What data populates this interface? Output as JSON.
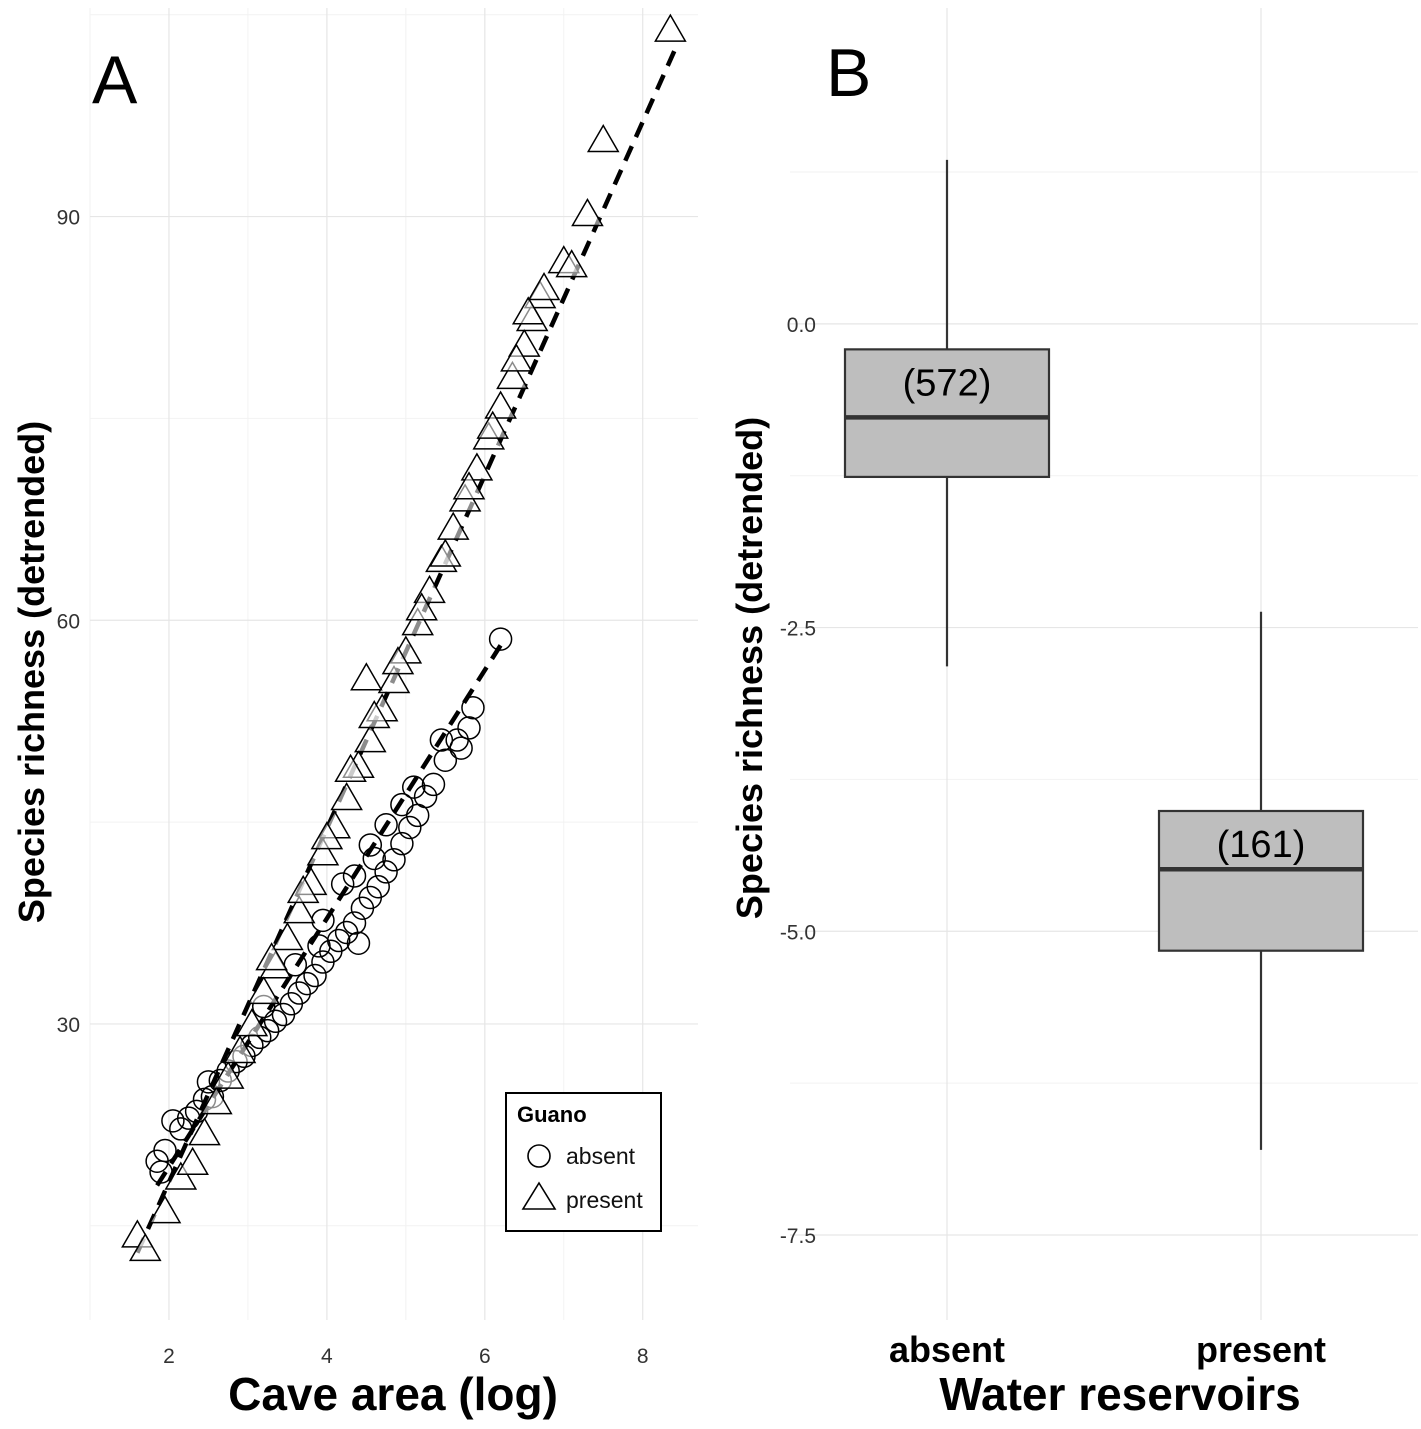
{
  "chart_data": [
    {
      "panel_label": "A",
      "type": "scatter",
      "xlabel": "Cave area (log)",
      "ylabel": "Species richness (detrended)",
      "xlim": [
        1.0,
        8.7
      ],
      "ylim": [
        8.0,
        105.5
      ],
      "xticks": [
        2,
        4,
        6,
        8
      ],
      "yticks": [
        30,
        60,
        90
      ],
      "grid": true,
      "legend": {
        "title": "Guano",
        "placement": "bottom-right",
        "entries": [
          "absent",
          "present"
        ]
      },
      "series": [
        {
          "name": "absent",
          "marker": "circle",
          "fit_line": {
            "style": "dashed",
            "x": [
              1.85,
              6.25
            ],
            "y": [
              18.0,
              58.6
            ]
          },
          "points": [
            [
              1.85,
              19.8
            ],
            [
              1.9,
              19.0
            ],
            [
              1.95,
              20.6
            ],
            [
              2.05,
              22.8
            ],
            [
              2.15,
              22.2
            ],
            [
              2.25,
              23.0
            ],
            [
              2.35,
              23.5
            ],
            [
              2.45,
              24.4
            ],
            [
              2.55,
              24.6
            ],
            [
              2.65,
              25.8
            ],
            [
              2.75,
              26.5
            ],
            [
              2.85,
              27.2
            ],
            [
              2.95,
              27.6
            ],
            [
              3.05,
              28.4
            ],
            [
              3.15,
              29.0
            ],
            [
              3.25,
              29.5
            ],
            [
              3.35,
              30.2
            ],
            [
              3.45,
              30.7
            ],
            [
              3.55,
              31.5
            ],
            [
              3.65,
              32.3
            ],
            [
              3.75,
              33.0
            ],
            [
              3.85,
              33.6
            ],
            [
              3.95,
              34.6
            ],
            [
              4.05,
              35.4
            ],
            [
              4.15,
              36.2
            ],
            [
              4.25,
              36.8
            ],
            [
              4.35,
              37.5
            ],
            [
              4.45,
              38.6
            ],
            [
              4.55,
              39.4
            ],
            [
              4.65,
              40.2
            ],
            [
              4.75,
              41.3
            ],
            [
              4.85,
              42.2
            ],
            [
              4.95,
              43.4
            ],
            [
              5.05,
              44.6
            ],
            [
              5.15,
              45.5
            ],
            [
              5.25,
              46.9
            ],
            [
              5.35,
              47.8
            ],
            [
              5.5,
              49.6
            ],
            [
              5.65,
              51.1
            ],
            [
              5.8,
              52.0
            ],
            [
              5.85,
              53.5
            ],
            [
              6.2,
              58.6
            ],
            [
              4.55,
              43.3
            ],
            [
              4.75,
              44.8
            ],
            [
              4.95,
              46.3
            ],
            [
              3.2,
              31.3
            ],
            [
              3.6,
              34.4
            ],
            [
              4.2,
              40.4
            ],
            [
              5.45,
              51.1
            ],
            [
              4.35,
              41.0
            ],
            [
              3.9,
              35.8
            ],
            [
              5.1,
              47.6
            ],
            [
              2.5,
              25.7
            ],
            [
              4.6,
              42.3
            ],
            [
              4.4,
              36.0
            ],
            [
              3.95,
              37.7
            ],
            [
              5.7,
              50.5
            ]
          ]
        },
        {
          "name": "present",
          "marker": "triangle",
          "fit_line": {
            "style": "dashed",
            "x": [
              1.6,
              8.4
            ],
            "y": [
              13.0,
              102.3
            ]
          },
          "points": [
            [
              1.6,
              14.4
            ],
            [
              1.7,
              13.4
            ],
            [
              1.95,
              16.2
            ],
            [
              2.15,
              18.7
            ],
            [
              2.3,
              19.8
            ],
            [
              2.45,
              22.0
            ],
            [
              2.6,
              24.3
            ],
            [
              2.75,
              26.2
            ],
            [
              2.9,
              28.1
            ],
            [
              3.05,
              30.1
            ],
            [
              3.2,
              32.5
            ],
            [
              3.35,
              34.4
            ],
            [
              3.5,
              36.5
            ],
            [
              3.65,
              38.5
            ],
            [
              3.8,
              40.6
            ],
            [
              3.95,
              42.8
            ],
            [
              4.1,
              44.8
            ],
            [
              4.25,
              46.9
            ],
            [
              4.4,
              49.3
            ],
            [
              4.55,
              51.2
            ],
            [
              4.7,
              53.5
            ],
            [
              4.85,
              55.6
            ],
            [
              5.0,
              57.8
            ],
            [
              5.15,
              59.9
            ],
            [
              5.3,
              62.3
            ],
            [
              5.45,
              64.6
            ],
            [
              5.6,
              67.0
            ],
            [
              5.75,
              69.1
            ],
            [
              5.9,
              71.4
            ],
            [
              6.05,
              73.7
            ],
            [
              6.2,
              76.0
            ],
            [
              6.35,
              78.2
            ],
            [
              6.5,
              80.6
            ],
            [
              6.6,
              82.5
            ],
            [
              6.7,
              84.2
            ],
            [
              4.5,
              55.8
            ],
            [
              7.0,
              86.8
            ],
            [
              7.1,
              86.5
            ],
            [
              7.3,
              90.3
            ],
            [
              7.5,
              95.8
            ],
            [
              8.35,
              104.0
            ],
            [
              3.3,
              35.0
            ],
            [
              3.7,
              40.0
            ],
            [
              4.0,
              44.0
            ],
            [
              4.3,
              49.0
            ],
            [
              4.6,
              53.0
            ],
            [
              4.9,
              57.0
            ],
            [
              5.2,
              61.0
            ],
            [
              5.5,
              65.0
            ],
            [
              5.8,
              70.0
            ],
            [
              6.1,
              74.5
            ],
            [
              6.4,
              79.5
            ],
            [
              6.55,
              83.0
            ],
            [
              6.75,
              84.8
            ]
          ]
        }
      ]
    },
    {
      "panel_label": "B",
      "type": "box",
      "xlabel": "Water reservoirs",
      "ylabel": "Species richness (detrended)",
      "ylim": [
        -8.2,
        2.6
      ],
      "yticks": [
        0.0,
        -2.5,
        -5.0,
        -7.5
      ],
      "ytick_labels": [
        "0.0",
        "-2.5",
        "-5.0",
        "-7.5"
      ],
      "grid": true,
      "categories": [
        "absent",
        "present"
      ],
      "boxes": [
        {
          "category": "absent",
          "count_label": "(572)",
          "whisker_low": -2.82,
          "q1": -1.26,
          "median": -0.77,
          "q3": -0.21,
          "whisker_high": 1.35
        },
        {
          "category": "present",
          "count_label": "(161)",
          "whisker_low": -6.8,
          "q1": -5.16,
          "median": -4.49,
          "q3": -4.01,
          "whisker_high": -2.37
        }
      ]
    }
  ]
}
